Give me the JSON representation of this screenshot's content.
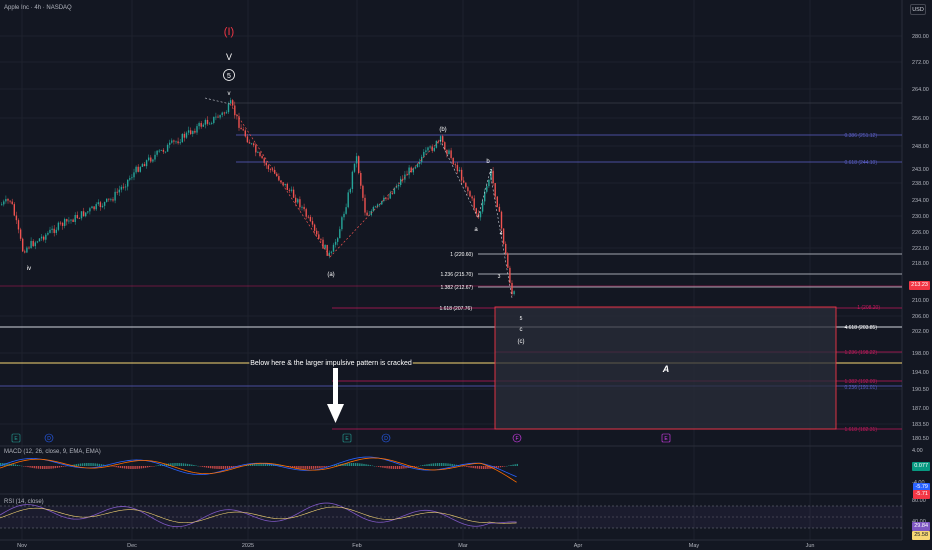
{
  "header": {
    "symbol_title": "Apple Inc · 4h · NASDAQ",
    "currency_button": "USD"
  },
  "price_axis": {
    "ticks": [
      "280.00",
      "272.00",
      "264.00",
      "256.00",
      "248.00",
      "243.00",
      "238.00",
      "234.00",
      "230.00",
      "226.00",
      "222.00",
      "218.00",
      "213.23",
      "210.00",
      "206.00",
      "202.00",
      "198.00",
      "194.00",
      "190.50",
      "187.00",
      "183.50",
      "180.50"
    ],
    "current_price": "213.23"
  },
  "time_axis": {
    "labels": [
      "Nov",
      "Dec",
      "2025",
      "Feb",
      "Mar",
      "Apr",
      "May",
      "Jun"
    ]
  },
  "colors": {
    "background": "#131722",
    "up": "#26a69a",
    "down": "#ef5350",
    "wave_red": "#f23645",
    "fib_blue": "#5b5fc7",
    "fib_red": "#c2185b",
    "yellow": "#f7d774",
    "box_fill": "#2a2e39",
    "box_border": "#f23645"
  },
  "wave_labels": {
    "major": "(I)",
    "five_roman": "V",
    "five_circle": "5",
    "v_small": "v",
    "iv_small": "iv",
    "a_paren": "(a)",
    "b_paren": "(b)",
    "c_paren": "(c)",
    "b_small": "b",
    "a_small": "a",
    "c_small": "c",
    "w1": "1",
    "w2": "2",
    "w3": "3",
    "w4": "4",
    "w5": "5",
    "big_a": "A"
  },
  "fib_levels": {
    "fib_0386": "0.386 (251.12)",
    "fib_0618": "0.618 (244.10)",
    "fib_1": "1 (220.60)",
    "fib_1236": "1.236 (215.70)",
    "fib_1382": "1.382 (212.67)",
    "fib_1618": "1.618 (207.76)",
    "fib_red_1": "1 (208.20)",
    "fib_4618": "4.618 (203.85)",
    "fib_red_1236": "1.236 (198.22)",
    "fib_red_1382": "1.382 (192.09)",
    "fib_blue_0236": "0.236 (191.01)",
    "fib_red_1618": "1.618 (182.31)"
  },
  "annotation": "Below here & the larger impulsive pattern is cracked",
  "macd": {
    "title": "MACD (12, 26, close, 9, EMA, EMA)",
    "axis": [
      "4.00",
      "-4.00"
    ],
    "value_1": "0.077",
    "value_2": "-5.79",
    "value_3": "-5.71"
  },
  "rsi": {
    "title": "RSI (14, close)",
    "axis": [
      "80.00",
      "40.00"
    ],
    "value_1": "29.84",
    "value_2": "25.58"
  },
  "time_markers": [
    "E",
    "D",
    "E",
    "D",
    "F",
    "E"
  ]
}
